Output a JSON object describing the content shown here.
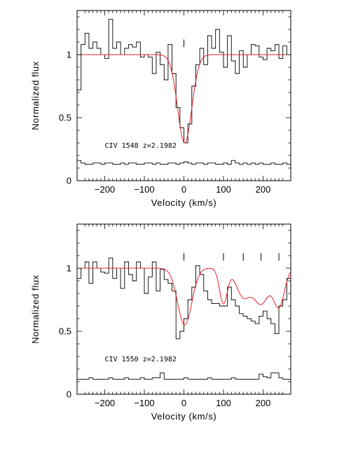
{
  "chart_data": [
    {
      "type": "line",
      "title": "",
      "xlabel": "Velocity (km/s)",
      "ylabel": "Normalized flux",
      "xlim": [
        -270,
        270
      ],
      "ylim": [
        0,
        1.35
      ],
      "xticks": [
        -200,
        -100,
        0,
        100,
        200
      ],
      "xtick_labels": [
        "−200",
        "−100",
        "0",
        "100",
        "200"
      ],
      "yticks": [
        0,
        0.5,
        1
      ],
      "ytick_labels": [
        "0",
        "0.5",
        "1"
      ],
      "annotation": "CIV  1548  z=2.1982",
      "component_markers": [
        0
      ],
      "fit_color": "#e8202a",
      "series": [
        {
          "kind": "histogram",
          "x": [
            -265,
            -255,
            -245,
            -235,
            -225,
            -215,
            -205,
            -195,
            -185,
            -175,
            -165,
            -155,
            -145,
            -135,
            -125,
            -115,
            -105,
            -95,
            -85,
            -75,
            -65,
            -55,
            -45,
            -35,
            -25,
            -15,
            -5,
            5,
            15,
            25,
            35,
            45,
            55,
            65,
            75,
            85,
            95,
            105,
            115,
            125,
            135,
            145,
            155,
            165,
            175,
            185,
            195,
            205,
            215,
            225,
            235,
            245,
            255,
            265
          ],
          "y": [
            0.72,
            1.08,
            1.17,
            1.05,
            1.1,
            1.05,
            1.0,
            0.97,
            1.28,
            1.05,
            1.1,
            1.0,
            1.05,
            1.08,
            1.06,
            1.1,
            0.98,
            1.0,
            0.98,
            0.85,
            1.02,
            0.92,
            0.8,
            1.08,
            0.85,
            0.58,
            0.42,
            0.3,
            0.45,
            0.75,
            0.92,
            1.05,
            0.92,
            1.15,
            1.05,
            1.2,
            1.02,
            0.9,
            1.15,
            0.95,
            0.85,
            1.03,
            0.9,
            1.0,
            1.08,
            1.07,
            0.98,
            0.96,
            1.05,
            1.03,
            1.08,
            0.97,
            1.07,
            1.0
          ]
        },
        {
          "kind": "fit",
          "model": [
            {
              "center": 2,
              "depth": 0.7,
              "sigma": 18
            }
          ]
        },
        {
          "kind": "histogram",
          "x": [
            -265,
            -255,
            -245,
            -235,
            -225,
            -215,
            -205,
            -195,
            -185,
            -175,
            -165,
            -155,
            -145,
            -135,
            -125,
            -115,
            -105,
            -95,
            -85,
            -75,
            -65,
            -55,
            -45,
            -35,
            -25,
            -15,
            -5,
            5,
            15,
            25,
            35,
            45,
            55,
            65,
            75,
            85,
            95,
            105,
            115,
            125,
            135,
            145,
            155,
            165,
            175,
            185,
            195,
            205,
            215,
            225,
            235,
            245,
            255,
            265
          ],
          "y": [
            0.16,
            0.14,
            0.13,
            0.13,
            0.14,
            0.14,
            0.13,
            0.14,
            0.14,
            0.13,
            0.13,
            0.14,
            0.13,
            0.14,
            0.14,
            0.13,
            0.13,
            0.14,
            0.14,
            0.13,
            0.14,
            0.13,
            0.13,
            0.14,
            0.14,
            0.13,
            0.14,
            0.15,
            0.14,
            0.13,
            0.14,
            0.14,
            0.13,
            0.14,
            0.14,
            0.13,
            0.13,
            0.14,
            0.13,
            0.16,
            0.14,
            0.13,
            0.14,
            0.13,
            0.14,
            0.13,
            0.14,
            0.13,
            0.13,
            0.14,
            0.13,
            0.13,
            0.14,
            0.13
          ]
        }
      ]
    },
    {
      "type": "line",
      "title": "",
      "xlabel": "Velocity (km/s)",
      "ylabel": "Normalized flux",
      "xlim": [
        -270,
        270
      ],
      "ylim": [
        0,
        1.35
      ],
      "xticks": [
        -200,
        -100,
        0,
        100,
        200
      ],
      "xtick_labels": [
        "−200",
        "−100",
        "0",
        "100",
        "200"
      ],
      "yticks": [
        0,
        0.5,
        1
      ],
      "ytick_labels": [
        "0",
        "0.5",
        "1"
      ],
      "annotation": "CIV  1550  z=2.1982",
      "component_markers": [
        0,
        100,
        150,
        195,
        240
      ],
      "fit_color": "#e8202a",
      "series": [
        {
          "kind": "histogram",
          "x": [
            -265,
            -255,
            -245,
            -235,
            -225,
            -215,
            -205,
            -195,
            -185,
            -175,
            -165,
            -155,
            -145,
            -135,
            -125,
            -115,
            -105,
            -95,
            -85,
            -75,
            -65,
            -55,
            -45,
            -35,
            -25,
            -15,
            -5,
            5,
            15,
            25,
            35,
            45,
            55,
            65,
            75,
            85,
            95,
            105,
            115,
            125,
            135,
            145,
            155,
            165,
            175,
            185,
            195,
            205,
            215,
            225,
            235,
            245,
            255,
            265
          ],
          "y": [
            0.92,
            1.0,
            1.05,
            0.88,
            1.05,
            1.0,
            0.97,
            0.96,
            1.08,
            0.92,
            1.0,
            0.84,
            1.05,
            0.95,
            0.9,
            1.05,
            1.0,
            0.8,
            0.93,
            1.05,
            0.82,
            0.99,
            0.91,
            0.88,
            0.82,
            0.44,
            0.5,
            0.6,
            0.75,
            0.85,
            1.02,
            0.95,
            0.82,
            0.75,
            0.72,
            0.72,
            0.7,
            0.7,
            0.85,
            0.75,
            0.7,
            0.64,
            0.62,
            0.6,
            0.58,
            0.56,
            0.62,
            0.66,
            0.6,
            0.56,
            0.48,
            0.7,
            0.75,
            0.92
          ]
        },
        {
          "kind": "fit",
          "model": [
            {
              "center": 2,
              "depth": 0.45,
              "sigma": 18
            },
            {
              "center": 100,
              "depth": 0.28,
              "sigma": 10
            },
            {
              "center": 150,
              "depth": 0.22,
              "sigma": 18
            },
            {
              "center": 195,
              "depth": 0.28,
              "sigma": 20
            },
            {
              "center": 240,
              "depth": 0.3,
              "sigma": 14
            }
          ]
        },
        {
          "kind": "histogram",
          "x": [
            -265,
            -255,
            -245,
            -235,
            -225,
            -215,
            -205,
            -195,
            -185,
            -175,
            -165,
            -155,
            -145,
            -135,
            -125,
            -115,
            -105,
            -95,
            -85,
            -75,
            -65,
            -55,
            -45,
            -35,
            -25,
            -15,
            -5,
            5,
            15,
            25,
            35,
            45,
            55,
            65,
            75,
            85,
            95,
            105,
            115,
            125,
            135,
            145,
            155,
            165,
            175,
            185,
            195,
            205,
            215,
            225,
            235,
            245,
            255,
            265
          ],
          "y": [
            0.12,
            0.12,
            0.12,
            0.13,
            0.12,
            0.12,
            0.12,
            0.12,
            0.13,
            0.12,
            0.12,
            0.12,
            0.13,
            0.12,
            0.12,
            0.12,
            0.13,
            0.12,
            0.12,
            0.13,
            0.13,
            0.17,
            0.12,
            0.12,
            0.12,
            0.12,
            0.12,
            0.13,
            0.12,
            0.12,
            0.12,
            0.12,
            0.12,
            0.13,
            0.12,
            0.12,
            0.12,
            0.12,
            0.12,
            0.13,
            0.12,
            0.12,
            0.12,
            0.12,
            0.12,
            0.12,
            0.16,
            0.14,
            0.13,
            0.17,
            0.17,
            0.13,
            0.12,
            0.12
          ]
        }
      ]
    }
  ]
}
